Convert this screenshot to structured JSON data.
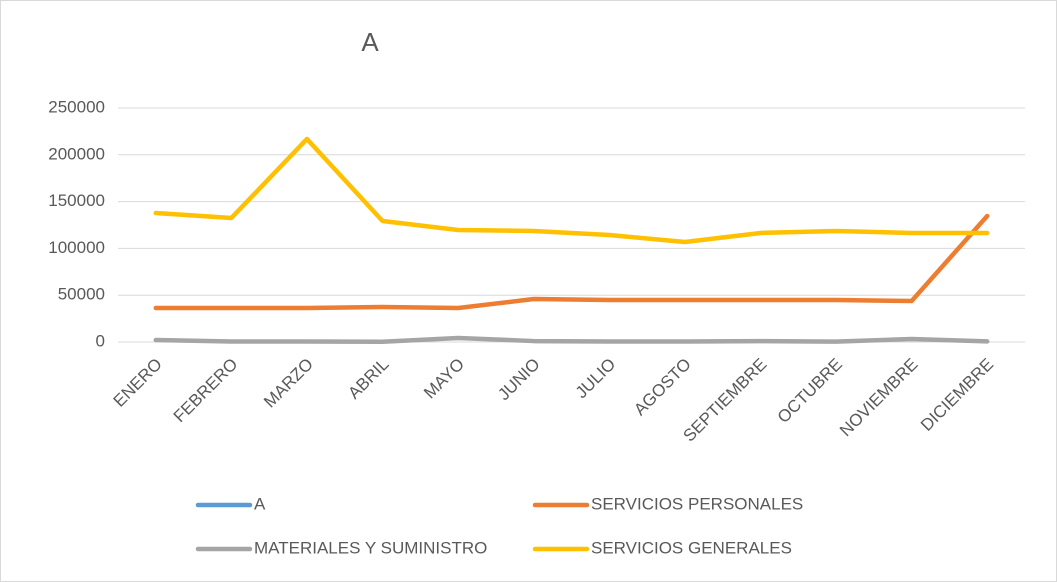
{
  "chart_data": {
    "type": "line",
    "title": "A",
    "categories": [
      "ENERO",
      "FEBRERO",
      "MARZO",
      "ABRIL",
      "MAYO",
      "JUNIO",
      "JULIO",
      "AGOSTO",
      "SEPTIEMBRE",
      "OCTUBRE",
      "NOVIEMBRE",
      "DICIEMBRE"
    ],
    "series": [
      {
        "name": "A",
        "color": "#5b9bd5",
        "values": [
          null,
          null,
          null,
          null,
          null,
          null,
          null,
          null,
          null,
          null,
          null,
          null
        ]
      },
      {
        "name": "SERVICIOS PERSONALES",
        "color": "#ed7d31",
        "values": [
          36300,
          36300,
          36300,
          37400,
          36300,
          45900,
          44900,
          44900,
          44900,
          44900,
          43800,
          134600
        ]
      },
      {
        "name": "MATERIALES Y SUMINISTRO",
        "color": "#a5a5a5",
        "values": [
          2100,
          500,
          500,
          300,
          4300,
          1000,
          500,
          500,
          1000,
          400,
          3200,
          700
        ]
      },
      {
        "name": "SERVICIOS GENERALES",
        "color": "#ffc000",
        "values": [
          137800,
          132500,
          216900,
          129300,
          119700,
          118600,
          114300,
          106800,
          116500,
          118600,
          116500,
          116500
        ]
      }
    ],
    "ylim": [
      0,
      250000
    ],
    "yticks": [
      0,
      50000,
      100000,
      150000,
      200000,
      250000
    ],
    "grid": true
  }
}
